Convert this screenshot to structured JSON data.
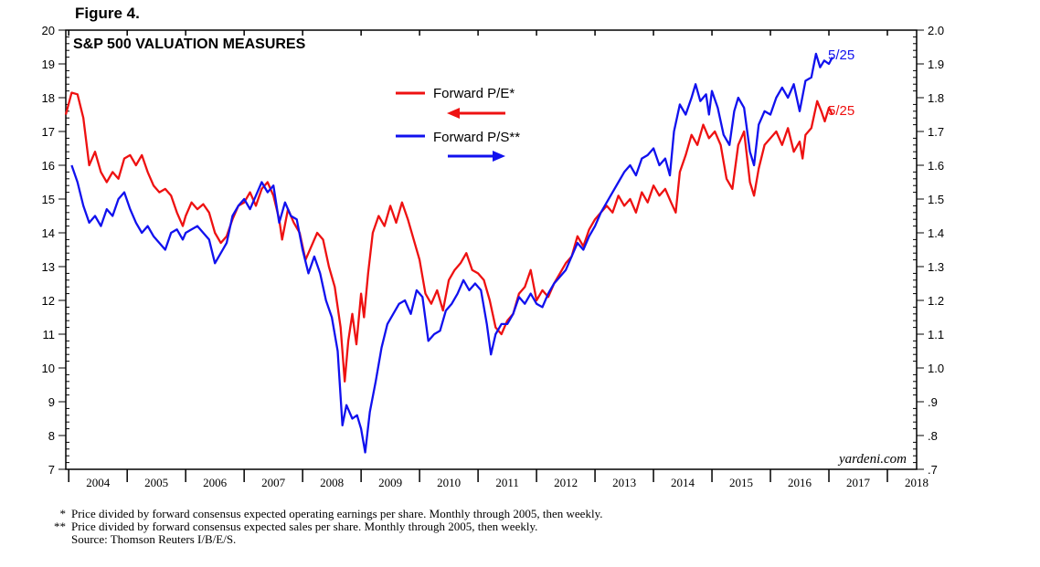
{
  "figure_label": "Figure 4.",
  "chart_data": {
    "type": "line",
    "title": "S&P 500 VALUATION MEASURES",
    "watermark": "yardeni.com",
    "x_labels": [
      "2004",
      "2005",
      "2006",
      "2007",
      "2008",
      "2009",
      "2010",
      "2011",
      "2012",
      "2013",
      "2014",
      "2015",
      "2016",
      "2017",
      "2018"
    ],
    "xlim": [
      2003.95,
      2018.5
    ],
    "left_axis": {
      "ylim": [
        7,
        20
      ],
      "tick_labels": [
        "7",
        "8",
        "9",
        "10",
        "11",
        "12",
        "13",
        "14",
        "15",
        "16",
        "17",
        "18",
        "19",
        "20"
      ]
    },
    "right_axis": {
      "ylim": [
        0.7,
        2.0
      ],
      "tick_labels": [
        ".7",
        ".8",
        ".9",
        "1.0",
        "1.1",
        "1.2",
        "1.3",
        "1.4",
        "1.5",
        "1.6",
        "1.7",
        "1.8",
        "1.9",
        "2.0"
      ]
    },
    "legend": {
      "pe_label": "Forward P/E*",
      "ps_label": "Forward P/S**",
      "pe_arrow": "left",
      "ps_arrow": "right"
    },
    "end_labels": {
      "ps": "5/25",
      "pe": "5/25"
    },
    "series": [
      {
        "name": "Forward P/E*",
        "axis": "left",
        "color": "#ee1111",
        "points": [
          [
            2003.95,
            17.5
          ],
          [
            2004.05,
            18.15
          ],
          [
            2004.15,
            18.1
          ],
          [
            2004.25,
            17.4
          ],
          [
            2004.35,
            16.0
          ],
          [
            2004.45,
            16.4
          ],
          [
            2004.55,
            15.8
          ],
          [
            2004.65,
            15.5
          ],
          [
            2004.75,
            15.8
          ],
          [
            2004.85,
            15.6
          ],
          [
            2004.95,
            16.2
          ],
          [
            2005.05,
            16.3
          ],
          [
            2005.15,
            16.0
          ],
          [
            2005.25,
            16.3
          ],
          [
            2005.35,
            15.8
          ],
          [
            2005.45,
            15.4
          ],
          [
            2005.55,
            15.2
          ],
          [
            2005.65,
            15.3
          ],
          [
            2005.75,
            15.1
          ],
          [
            2005.85,
            14.6
          ],
          [
            2005.95,
            14.2
          ],
          [
            2006.0,
            14.5
          ],
          [
            2006.1,
            14.9
          ],
          [
            2006.2,
            14.7
          ],
          [
            2006.3,
            14.85
          ],
          [
            2006.4,
            14.6
          ],
          [
            2006.5,
            14.0
          ],
          [
            2006.6,
            13.7
          ],
          [
            2006.7,
            13.9
          ],
          [
            2006.8,
            14.4
          ],
          [
            2006.9,
            14.8
          ],
          [
            2007.0,
            14.9
          ],
          [
            2007.1,
            15.2
          ],
          [
            2007.2,
            14.8
          ],
          [
            2007.3,
            15.3
          ],
          [
            2007.4,
            15.5
          ],
          [
            2007.5,
            15.1
          ],
          [
            2007.6,
            14.4
          ],
          [
            2007.65,
            13.8
          ],
          [
            2007.75,
            14.7
          ],
          [
            2007.85,
            14.3
          ],
          [
            2007.95,
            14.0
          ],
          [
            2008.05,
            13.2
          ],
          [
            2008.15,
            13.6
          ],
          [
            2008.25,
            14.0
          ],
          [
            2008.35,
            13.8
          ],
          [
            2008.45,
            13.0
          ],
          [
            2008.55,
            12.4
          ],
          [
            2008.65,
            11.2
          ],
          [
            2008.72,
            9.6
          ],
          [
            2008.78,
            10.8
          ],
          [
            2008.85,
            11.6
          ],
          [
            2008.92,
            10.7
          ],
          [
            2009.0,
            12.2
          ],
          [
            2009.05,
            11.5
          ],
          [
            2009.12,
            12.8
          ],
          [
            2009.2,
            14.0
          ],
          [
            2009.3,
            14.5
          ],
          [
            2009.4,
            14.2
          ],
          [
            2009.5,
            14.8
          ],
          [
            2009.6,
            14.3
          ],
          [
            2009.7,
            14.9
          ],
          [
            2009.8,
            14.4
          ],
          [
            2009.9,
            13.8
          ],
          [
            2010.0,
            13.2
          ],
          [
            2010.1,
            12.2
          ],
          [
            2010.2,
            11.9
          ],
          [
            2010.3,
            12.3
          ],
          [
            2010.4,
            11.7
          ],
          [
            2010.5,
            12.6
          ],
          [
            2010.6,
            12.9
          ],
          [
            2010.7,
            13.1
          ],
          [
            2010.8,
            13.4
          ],
          [
            2010.9,
            12.9
          ],
          [
            2011.0,
            12.8
          ],
          [
            2011.1,
            12.6
          ],
          [
            2011.2,
            12.0
          ],
          [
            2011.3,
            11.2
          ],
          [
            2011.4,
            11.0
          ],
          [
            2011.5,
            11.4
          ],
          [
            2011.6,
            11.6
          ],
          [
            2011.7,
            12.2
          ],
          [
            2011.8,
            12.4
          ],
          [
            2011.9,
            12.9
          ],
          [
            2012.0,
            12.0
          ],
          [
            2012.1,
            12.3
          ],
          [
            2012.2,
            12.1
          ],
          [
            2012.3,
            12.5
          ],
          [
            2012.4,
            12.8
          ],
          [
            2012.5,
            13.1
          ],
          [
            2012.6,
            13.3
          ],
          [
            2012.7,
            13.9
          ],
          [
            2012.8,
            13.6
          ],
          [
            2012.9,
            14.1
          ],
          [
            2013.0,
            14.4
          ],
          [
            2013.1,
            14.6
          ],
          [
            2013.2,
            14.8
          ],
          [
            2013.3,
            14.6
          ],
          [
            2013.4,
            15.1
          ],
          [
            2013.5,
            14.8
          ],
          [
            2013.6,
            15.0
          ],
          [
            2013.7,
            14.6
          ],
          [
            2013.8,
            15.2
          ],
          [
            2013.9,
            14.9
          ],
          [
            2014.0,
            15.4
          ],
          [
            2014.1,
            15.1
          ],
          [
            2014.2,
            15.3
          ],
          [
            2014.3,
            14.9
          ],
          [
            2014.38,
            14.6
          ],
          [
            2014.45,
            15.8
          ],
          [
            2014.55,
            16.3
          ],
          [
            2014.65,
            16.9
          ],
          [
            2014.75,
            16.6
          ],
          [
            2014.85,
            17.2
          ],
          [
            2014.95,
            16.8
          ],
          [
            2015.05,
            17.0
          ],
          [
            2015.15,
            16.6
          ],
          [
            2015.25,
            15.6
          ],
          [
            2015.35,
            15.3
          ],
          [
            2015.45,
            16.6
          ],
          [
            2015.55,
            17.0
          ],
          [
            2015.65,
            15.5
          ],
          [
            2015.72,
            15.1
          ],
          [
            2015.8,
            15.9
          ],
          [
            2015.9,
            16.6
          ],
          [
            2016.0,
            16.8
          ],
          [
            2016.1,
            17.0
          ],
          [
            2016.2,
            16.6
          ],
          [
            2016.3,
            17.1
          ],
          [
            2016.4,
            16.4
          ],
          [
            2016.5,
            16.7
          ],
          [
            2016.55,
            16.2
          ],
          [
            2016.6,
            16.9
          ],
          [
            2016.7,
            17.1
          ],
          [
            2016.75,
            17.5
          ],
          [
            2016.8,
            17.9
          ],
          [
            2016.87,
            17.6
          ],
          [
            2016.93,
            17.3
          ],
          [
            2017.0,
            17.7
          ],
          [
            2017.06,
            17.5
          ]
        ]
      },
      {
        "name": "Forward P/S**",
        "axis": "right",
        "color": "#1111ee",
        "points": [
          [
            2004.05,
            1.6
          ],
          [
            2004.15,
            1.55
          ],
          [
            2004.25,
            1.48
          ],
          [
            2004.35,
            1.43
          ],
          [
            2004.45,
            1.45
          ],
          [
            2004.55,
            1.42
          ],
          [
            2004.65,
            1.47
          ],
          [
            2004.75,
            1.45
          ],
          [
            2004.85,
            1.5
          ],
          [
            2004.95,
            1.52
          ],
          [
            2005.05,
            1.47
          ],
          [
            2005.15,
            1.43
          ],
          [
            2005.25,
            1.4
          ],
          [
            2005.35,
            1.42
          ],
          [
            2005.45,
            1.39
          ],
          [
            2005.55,
            1.37
          ],
          [
            2005.65,
            1.35
          ],
          [
            2005.75,
            1.4
          ],
          [
            2005.85,
            1.41
          ],
          [
            2005.95,
            1.38
          ],
          [
            2006.0,
            1.4
          ],
          [
            2006.1,
            1.41
          ],
          [
            2006.2,
            1.42
          ],
          [
            2006.3,
            1.4
          ],
          [
            2006.4,
            1.38
          ],
          [
            2006.5,
            1.31
          ],
          [
            2006.6,
            1.34
          ],
          [
            2006.7,
            1.37
          ],
          [
            2006.8,
            1.45
          ],
          [
            2006.9,
            1.48
          ],
          [
            2007.0,
            1.5
          ],
          [
            2007.1,
            1.47
          ],
          [
            2007.2,
            1.51
          ],
          [
            2007.3,
            1.55
          ],
          [
            2007.4,
            1.52
          ],
          [
            2007.5,
            1.54
          ],
          [
            2007.6,
            1.43
          ],
          [
            2007.7,
            1.49
          ],
          [
            2007.8,
            1.45
          ],
          [
            2007.9,
            1.44
          ],
          [
            2008.0,
            1.35
          ],
          [
            2008.1,
            1.28
          ],
          [
            2008.2,
            1.33
          ],
          [
            2008.3,
            1.28
          ],
          [
            2008.4,
            1.2
          ],
          [
            2008.5,
            1.15
          ],
          [
            2008.6,
            1.05
          ],
          [
            2008.68,
            0.83
          ],
          [
            2008.75,
            0.89
          ],
          [
            2008.85,
            0.85
          ],
          [
            2008.93,
            0.86
          ],
          [
            2009.0,
            0.82
          ],
          [
            2009.07,
            0.75
          ],
          [
            2009.15,
            0.87
          ],
          [
            2009.25,
            0.96
          ],
          [
            2009.35,
            1.06
          ],
          [
            2009.45,
            1.13
          ],
          [
            2009.55,
            1.16
          ],
          [
            2009.65,
            1.19
          ],
          [
            2009.75,
            1.2
          ],
          [
            2009.85,
            1.16
          ],
          [
            2009.95,
            1.23
          ],
          [
            2010.05,
            1.21
          ],
          [
            2010.15,
            1.08
          ],
          [
            2010.25,
            1.1
          ],
          [
            2010.35,
            1.11
          ],
          [
            2010.45,
            1.17
          ],
          [
            2010.55,
            1.19
          ],
          [
            2010.65,
            1.22
          ],
          [
            2010.75,
            1.26
          ],
          [
            2010.85,
            1.23
          ],
          [
            2010.95,
            1.25
          ],
          [
            2011.05,
            1.23
          ],
          [
            2011.15,
            1.13
          ],
          [
            2011.22,
            1.04
          ],
          [
            2011.3,
            1.1
          ],
          [
            2011.4,
            1.13
          ],
          [
            2011.5,
            1.13
          ],
          [
            2011.6,
            1.16
          ],
          [
            2011.7,
            1.21
          ],
          [
            2011.8,
            1.19
          ],
          [
            2011.9,
            1.22
          ],
          [
            2012.0,
            1.19
          ],
          [
            2012.1,
            1.18
          ],
          [
            2012.2,
            1.22
          ],
          [
            2012.3,
            1.25
          ],
          [
            2012.4,
            1.27
          ],
          [
            2012.5,
            1.29
          ],
          [
            2012.6,
            1.33
          ],
          [
            2012.7,
            1.37
          ],
          [
            2012.8,
            1.35
          ],
          [
            2012.9,
            1.39
          ],
          [
            2013.0,
            1.42
          ],
          [
            2013.1,
            1.46
          ],
          [
            2013.2,
            1.49
          ],
          [
            2013.3,
            1.52
          ],
          [
            2013.4,
            1.55
          ],
          [
            2013.5,
            1.58
          ],
          [
            2013.6,
            1.6
          ],
          [
            2013.7,
            1.57
          ],
          [
            2013.8,
            1.62
          ],
          [
            2013.9,
            1.63
          ],
          [
            2014.0,
            1.65
          ],
          [
            2014.1,
            1.6
          ],
          [
            2014.2,
            1.62
          ],
          [
            2014.28,
            1.57
          ],
          [
            2014.35,
            1.7
          ],
          [
            2014.45,
            1.78
          ],
          [
            2014.55,
            1.75
          ],
          [
            2014.65,
            1.8
          ],
          [
            2014.72,
            1.84
          ],
          [
            2014.8,
            1.79
          ],
          [
            2014.9,
            1.81
          ],
          [
            2014.95,
            1.75
          ],
          [
            2015.0,
            1.82
          ],
          [
            2015.1,
            1.77
          ],
          [
            2015.2,
            1.69
          ],
          [
            2015.3,
            1.66
          ],
          [
            2015.38,
            1.76
          ],
          [
            2015.45,
            1.8
          ],
          [
            2015.55,
            1.77
          ],
          [
            2015.65,
            1.64
          ],
          [
            2015.72,
            1.6
          ],
          [
            2015.8,
            1.72
          ],
          [
            2015.9,
            1.76
          ],
          [
            2016.0,
            1.75
          ],
          [
            2016.1,
            1.8
          ],
          [
            2016.2,
            1.83
          ],
          [
            2016.3,
            1.8
          ],
          [
            2016.4,
            1.84
          ],
          [
            2016.5,
            1.76
          ],
          [
            2016.6,
            1.85
          ],
          [
            2016.7,
            1.86
          ],
          [
            2016.78,
            1.93
          ],
          [
            2016.85,
            1.89
          ],
          [
            2016.92,
            1.91
          ],
          [
            2017.0,
            1.9
          ],
          [
            2017.06,
            1.92
          ]
        ]
      }
    ]
  },
  "footnotes": [
    {
      "mark": "*",
      "text": "Price divided by forward consensus expected operating earnings per share. Monthly through 2005, then weekly."
    },
    {
      "mark": "**",
      "text": "Price divided by forward consensus expected sales per share. Monthly through 2005, then weekly."
    },
    {
      "mark": "",
      "text": "Source: Thomson Reuters I/B/E/S."
    }
  ]
}
